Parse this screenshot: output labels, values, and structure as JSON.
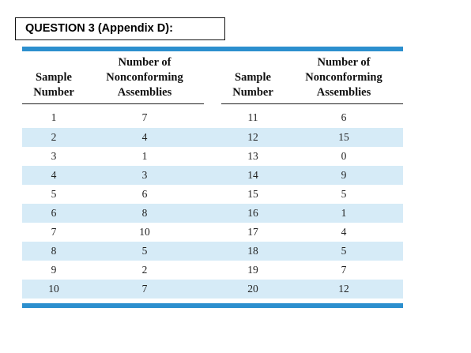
{
  "question_label": "QUESTION 3 (Appendix D):",
  "columns": [
    {
      "line1": "",
      "line2": "Sample",
      "line3": "Number"
    },
    {
      "line1": "Number of",
      "line2": "Nonconforming",
      "line3": "Assemblies"
    },
    {
      "line1": "",
      "line2": "Sample",
      "line3": "Number"
    },
    {
      "line1": "Number of",
      "line2": "Nonconforming",
      "line3": "Assemblies"
    }
  ],
  "rows": [
    {
      "s1": "1",
      "n1": "7",
      "s2": "11",
      "n2": "6"
    },
    {
      "s1": "2",
      "n1": "4",
      "s2": "12",
      "n2": "15"
    },
    {
      "s1": "3",
      "n1": "1",
      "s2": "13",
      "n2": "0"
    },
    {
      "s1": "4",
      "n1": "3",
      "s2": "14",
      "n2": "9"
    },
    {
      "s1": "5",
      "n1": "6",
      "s2": "15",
      "n2": "5"
    },
    {
      "s1": "6",
      "n1": "8",
      "s2": "16",
      "n2": "1"
    },
    {
      "s1": "7",
      "n1": "10",
      "s2": "17",
      "n2": "4"
    },
    {
      "s1": "8",
      "n1": "5",
      "s2": "18",
      "n2": "5"
    },
    {
      "s1": "9",
      "n1": "2",
      "s2": "19",
      "n2": "7"
    },
    {
      "s1": "10",
      "n1": "7",
      "s2": "20",
      "n2": "12"
    }
  ],
  "colors": {
    "accent_bar": "#2c8fce",
    "row_shade": "#d6ebf7"
  }
}
